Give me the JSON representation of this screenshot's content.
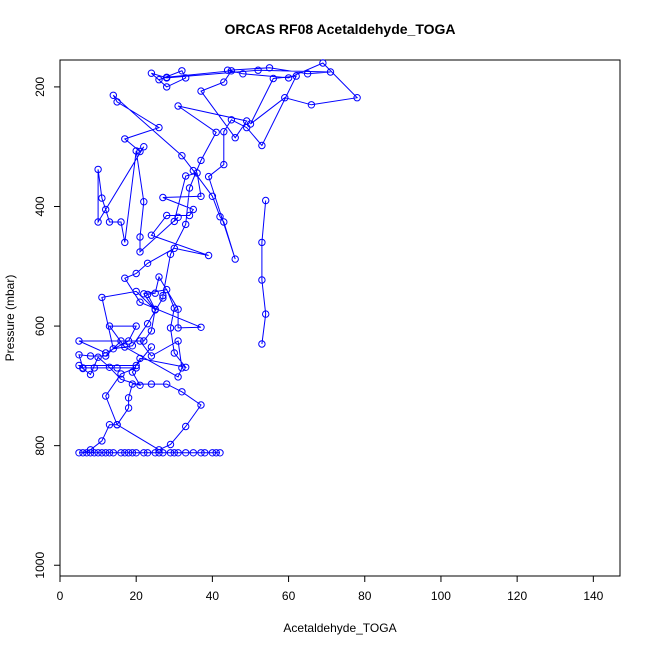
{
  "chart_data": {
    "type": "scatter",
    "title": "ORCAS RF08 Acetaldehyde_TOGA",
    "xlabel": "Acetaldehyde_TOGA",
    "ylabel": "Pressure (mbar)",
    "xlim": [
      0,
      147
    ],
    "ylim": [
      1018,
      155
    ],
    "y_axis_reversed": true,
    "xticks": [
      "0",
      "20",
      "40",
      "60",
      "80",
      "100",
      "120",
      "140"
    ],
    "yticks": [
      "200",
      "400",
      "600",
      "800",
      "1000"
    ],
    "grid": false,
    "legend": "none",
    "line_color": "#0000ff",
    "marker": "open-circle",
    "series": [
      {
        "points": [
          [
            5,
            812
          ],
          [
            7,
            812
          ],
          [
            9,
            812
          ],
          [
            11,
            812
          ],
          [
            13,
            812
          ],
          [
            17,
            812
          ],
          [
            18,
            812
          ],
          [
            20,
            812
          ],
          [
            23,
            812
          ],
          [
            25,
            812
          ],
          [
            27,
            812
          ],
          [
            29,
            812
          ],
          [
            31,
            812
          ],
          [
            35,
            812
          ],
          [
            37,
            812
          ],
          [
            40,
            812
          ],
          [
            42,
            812
          ],
          [
            41,
            812
          ],
          [
            38,
            812
          ],
          [
            33,
            812
          ],
          [
            30,
            812
          ],
          [
            26,
            812
          ],
          [
            22,
            812
          ],
          [
            19,
            812
          ],
          [
            16,
            812
          ],
          [
            14,
            812
          ],
          [
            12,
            812
          ],
          [
            10,
            812
          ],
          [
            8,
            812
          ],
          [
            6,
            812
          ],
          [
            8,
            807
          ],
          [
            11,
            792
          ],
          [
            13,
            765
          ],
          [
            15,
            765
          ],
          [
            18,
            737
          ],
          [
            18,
            720
          ],
          [
            19,
            697
          ],
          [
            24,
            697
          ],
          [
            28,
            697
          ],
          [
            32,
            710
          ],
          [
            37,
            732
          ],
          [
            33,
            768
          ],
          [
            29,
            798
          ],
          [
            26,
            807
          ],
          [
            15,
            765
          ],
          [
            12,
            717
          ],
          [
            16,
            680
          ],
          [
            20,
            670
          ],
          [
            15,
            670
          ],
          [
            9,
            670
          ],
          [
            6,
            670
          ],
          [
            5,
            648
          ],
          [
            8,
            650
          ],
          [
            12,
            650
          ],
          [
            16,
            625
          ],
          [
            21,
            625
          ],
          [
            24,
            650
          ],
          [
            31,
            625
          ],
          [
            32,
            670
          ],
          [
            31,
            685
          ],
          [
            17,
            635
          ],
          [
            13,
            600
          ],
          [
            20,
            600
          ],
          [
            18,
            625
          ],
          [
            12,
            645
          ],
          [
            5,
            625
          ],
          [
            22,
            625
          ],
          [
            24,
            608
          ],
          [
            25,
            572
          ],
          [
            23,
            547
          ],
          [
            25,
            545
          ],
          [
            26,
            518
          ],
          [
            31,
            572
          ],
          [
            31,
            603
          ],
          [
            37,
            602
          ],
          [
            21,
            560
          ],
          [
            17,
            520
          ],
          [
            20,
            512
          ],
          [
            23,
            495
          ],
          [
            30,
            470
          ],
          [
            39,
            482
          ],
          [
            24,
            448
          ],
          [
            28,
            415
          ],
          [
            34,
            415
          ],
          [
            35,
            405
          ],
          [
            27,
            385
          ],
          [
            37,
            383
          ],
          [
            36,
            344
          ],
          [
            33,
            349
          ],
          [
            30,
            425
          ],
          [
            31,
            418
          ],
          [
            21,
            476
          ],
          [
            21,
            451
          ],
          [
            22,
            392
          ],
          [
            20,
            307
          ],
          [
            17,
            460
          ],
          [
            16,
            426
          ],
          [
            13,
            426
          ],
          [
            12,
            405
          ],
          [
            11,
            386
          ],
          [
            10,
            338
          ],
          [
            10,
            426
          ],
          [
            22,
            300
          ],
          [
            21,
            308
          ],
          [
            17,
            287
          ],
          [
            26,
            268
          ],
          [
            15,
            225
          ],
          [
            14,
            214
          ],
          [
            32,
            315
          ],
          [
            35,
            340
          ],
          [
            40,
            383
          ],
          [
            42,
            417
          ],
          [
            43,
            426
          ],
          [
            46,
            488
          ],
          [
            39,
            350
          ],
          [
            43,
            330
          ],
          [
            43,
            275
          ],
          [
            45,
            255
          ],
          [
            49,
            268
          ],
          [
            53,
            298
          ],
          [
            62,
            182
          ],
          [
            56,
            186
          ],
          [
            50,
            262
          ],
          [
            59,
            218
          ],
          [
            66,
            230
          ],
          [
            78,
            218
          ],
          [
            69,
            160
          ],
          [
            60,
            185
          ],
          [
            48,
            178
          ],
          [
            44,
            172
          ],
          [
            55,
            168
          ],
          [
            65,
            178
          ],
          [
            71,
            175
          ],
          [
            52,
            172
          ],
          [
            28,
            185
          ],
          [
            24,
            177
          ],
          [
            28,
            200
          ],
          [
            33,
            185
          ],
          [
            32,
            173
          ],
          [
            26,
            188
          ],
          [
            28,
            184
          ],
          [
            45,
            173
          ],
          [
            43,
            192
          ],
          [
            37,
            207
          ],
          [
            46,
            285
          ],
          [
            49,
            257
          ],
          [
            31,
            232
          ],
          [
            41,
            276
          ],
          [
            37,
            323
          ],
          [
            34,
            369
          ],
          [
            33,
            430
          ],
          [
            29,
            480
          ],
          [
            27,
            549
          ],
          [
            27,
            553
          ],
          [
            23,
            596
          ],
          [
            19,
            633
          ],
          [
            14,
            638
          ],
          [
            11,
            552
          ],
          [
            20,
            542
          ],
          [
            25,
            573
          ],
          [
            22,
            546
          ],
          [
            28,
            539
          ],
          [
            30,
            570
          ],
          [
            29,
            603
          ],
          [
            30,
            645
          ],
          [
            33,
            669
          ],
          [
            21,
            654
          ],
          [
            19,
            677
          ],
          [
            21,
            699
          ],
          [
            16,
            689
          ],
          [
            13,
            669
          ],
          [
            10,
            652
          ],
          [
            8,
            681
          ],
          [
            6,
            671
          ],
          [
            5,
            666
          ],
          [
            20,
            666
          ],
          [
            24,
            635
          ]
        ]
      },
      {
        "points": [
          [
            54,
            390
          ],
          [
            53,
            460
          ],
          [
            53,
            523
          ],
          [
            54,
            580
          ],
          [
            53,
            630
          ]
        ]
      }
    ]
  }
}
